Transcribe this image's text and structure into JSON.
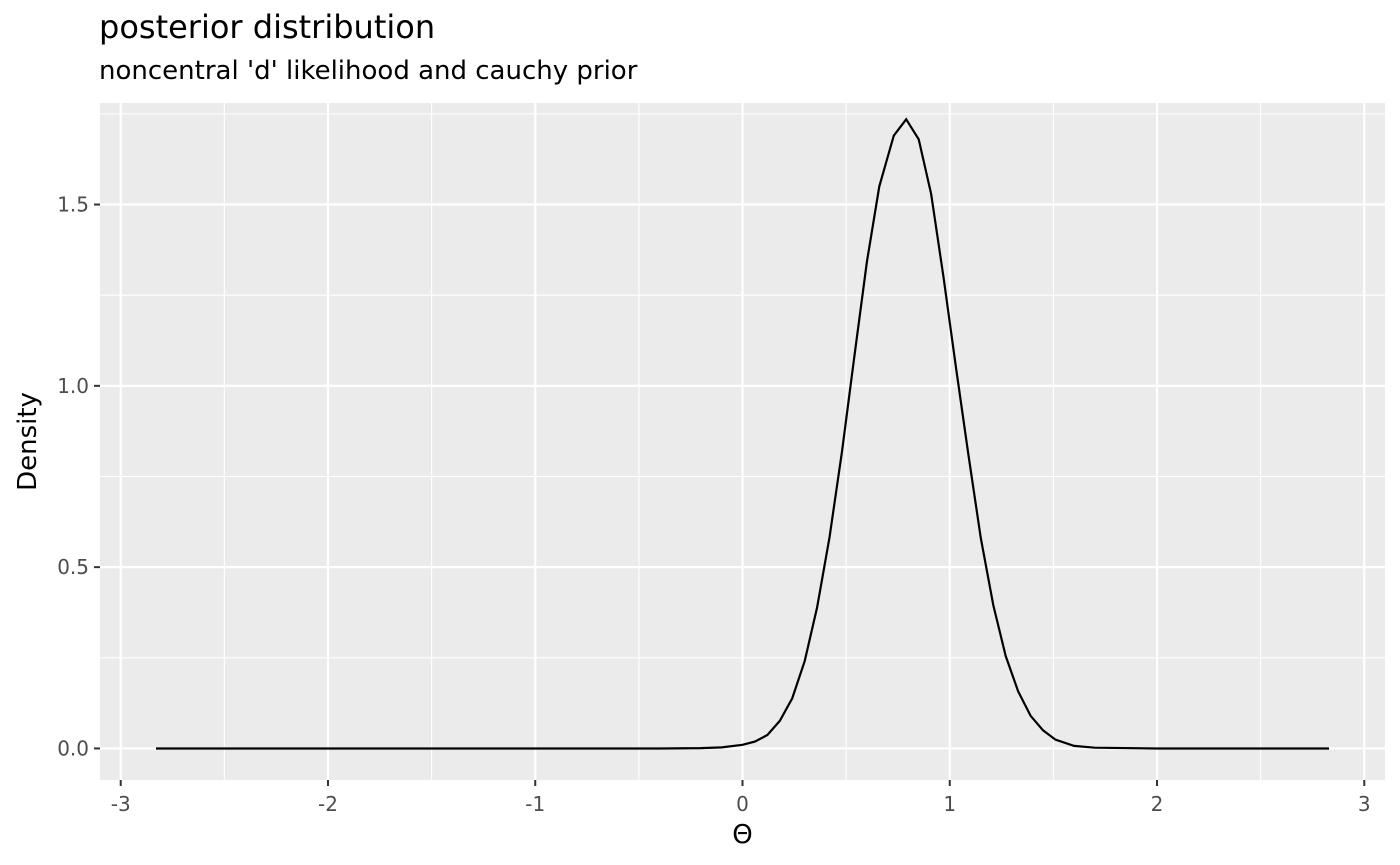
{
  "chart_data": {
    "type": "line",
    "title": "posterior distribution",
    "subtitle": "noncentral 'd' likelihood and cauchy prior",
    "xlabel": "Θ",
    "ylabel": "Density",
    "xlim": [
      -3.1,
      3.1
    ],
    "ylim": [
      -0.087,
      1.78
    ],
    "x_ticks": [
      -3,
      -2,
      -1,
      0,
      1,
      2,
      3
    ],
    "x_tick_labels": [
      "-3",
      "-2",
      "-1",
      "0",
      "1",
      "2",
      "3"
    ],
    "y_ticks": [
      0.0,
      0.5,
      1.0,
      1.5
    ],
    "y_tick_labels": [
      "0.0",
      "0.5",
      "1.0",
      "1.5"
    ],
    "grid": true,
    "background": "#ebebeb",
    "grid_color": "#ffffff",
    "line_color": "#000000",
    "series": [
      {
        "x": [
          -2.83,
          -0.4,
          -0.2,
          -0.1,
          0.0,
          0.06,
          0.12,
          0.18,
          0.24,
          0.3,
          0.36,
          0.42,
          0.48,
          0.54,
          0.6,
          0.66,
          0.73,
          0.79,
          0.85,
          0.91,
          0.97,
          1.03,
          1.09,
          1.15,
          1.21,
          1.27,
          1.33,
          1.39,
          1.45,
          1.51,
          1.6,
          1.7,
          2.0,
          2.83
        ],
        "y": [
          0.0,
          0.0,
          0.001,
          0.003,
          0.01,
          0.019,
          0.037,
          0.076,
          0.138,
          0.241,
          0.389,
          0.582,
          0.819,
          1.082,
          1.342,
          1.55,
          1.69,
          1.735,
          1.68,
          1.53,
          1.3,
          1.05,
          0.81,
          0.58,
          0.395,
          0.255,
          0.157,
          0.09,
          0.05,
          0.024,
          0.007,
          0.002,
          0.0,
          0.0
        ]
      }
    ]
  }
}
